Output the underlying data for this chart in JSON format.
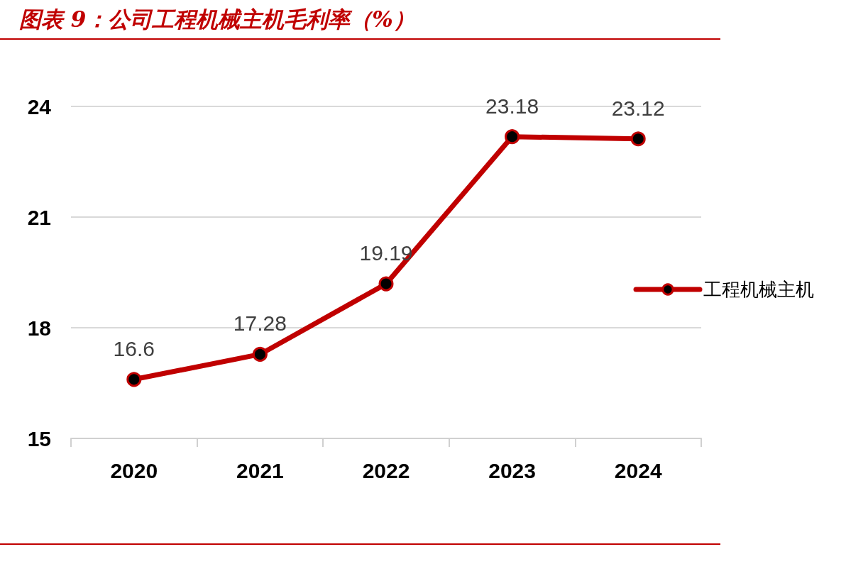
{
  "chart_data": {
    "type": "line",
    "title": "图表 9：公司工程机械主机毛利率（%）",
    "categories": [
      "2020",
      "2021",
      "2022",
      "2023",
      "2024"
    ],
    "series": [
      {
        "name": "工程机械主机",
        "color": "#c00000",
        "values": [
          16.6,
          17.28,
          19.19,
          23.18,
          23.12
        ]
      }
    ],
    "ylim": [
      15,
      24
    ],
    "yticks": [
      15,
      18,
      21,
      24
    ],
    "grid": "y",
    "legend": "right",
    "marker": "circle",
    "line_style": "solid",
    "data_labels": true
  }
}
